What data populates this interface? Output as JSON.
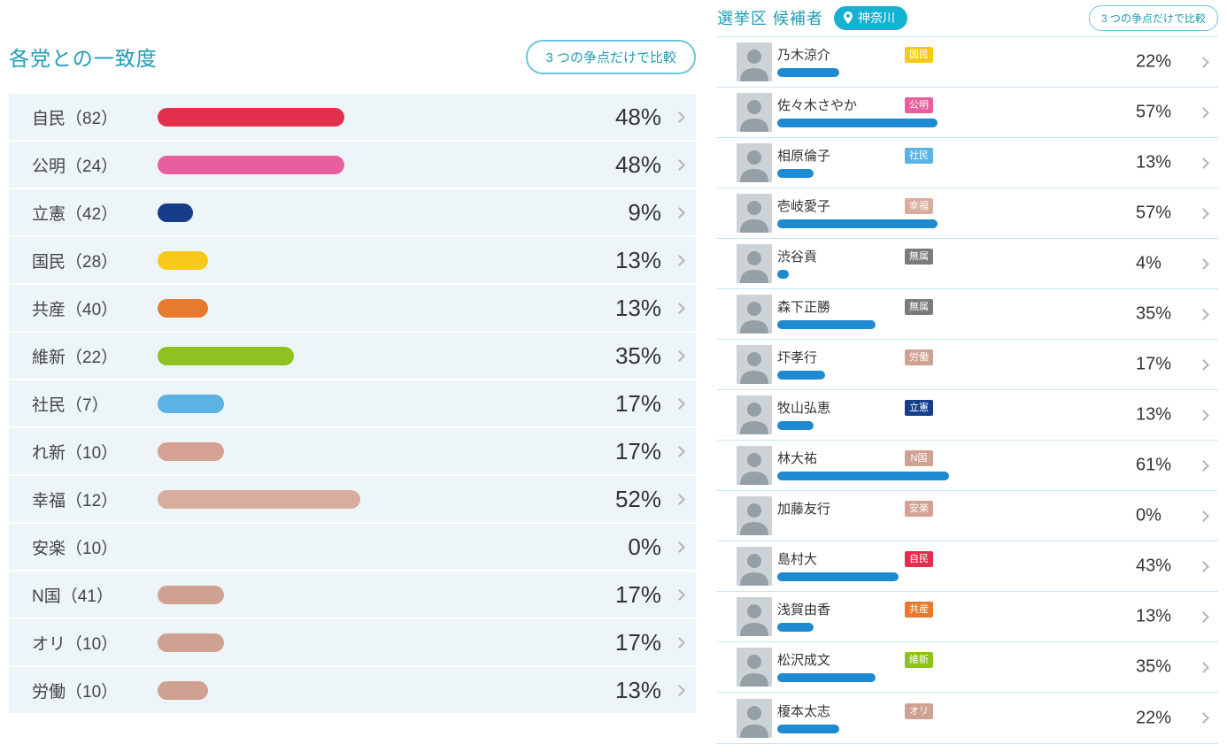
{
  "accent_color": "#1f9cb5",
  "icons": {
    "chevron": "chevron-right",
    "location_pin": "map-pin"
  },
  "left_panel": {
    "title": "各党との一致度",
    "compare_button": "3 つの争点だけで比較",
    "rows": [
      {
        "party": "自民（82）",
        "pct": 48,
        "pct_label": "48%",
        "color": "#e2304c"
      },
      {
        "party": "公明（24）",
        "pct": 48,
        "pct_label": "48%",
        "color": "#e75f9e"
      },
      {
        "party": "立憲（42）",
        "pct": 9,
        "pct_label": "9%",
        "color": "#153d8a"
      },
      {
        "party": "国民（28）",
        "pct": 13,
        "pct_label": "13%",
        "color": "#f7c918"
      },
      {
        "party": "共産（40）",
        "pct": 13,
        "pct_label": "13%",
        "color": "#e87a2e"
      },
      {
        "party": "維新（22）",
        "pct": 35,
        "pct_label": "35%",
        "color": "#8dc21f"
      },
      {
        "party": "社民（7）",
        "pct": 17,
        "pct_label": "17%",
        "color": "#5bb3e4"
      },
      {
        "party": "れ新（10）",
        "pct": 17,
        "pct_label": "17%",
        "color": "#d4a192"
      },
      {
        "party": "幸福（12）",
        "pct": 52,
        "pct_label": "52%",
        "color": "#d8ac9e"
      },
      {
        "party": "安楽（10）",
        "pct": 0,
        "pct_label": "0%",
        "color": "#d4a192"
      },
      {
        "party": "N国（41）",
        "pct": 17,
        "pct_label": "17%",
        "color": "#cfa193"
      },
      {
        "party": "オリ（10）",
        "pct": 17,
        "pct_label": "17%",
        "color": "#cfa193"
      },
      {
        "party": "労働（10）",
        "pct": 13,
        "pct_label": "13%",
        "color": "#cfa193"
      }
    ]
  },
  "right_panel": {
    "title": "選挙区 候補者",
    "location": "神奈川",
    "compare_button": "3 つの争点だけで比較",
    "bar_color": "#1e8ad2",
    "candidates": [
      {
        "name": "乃木涼介",
        "party": "国民",
        "party_color": "#f7c918",
        "pct": 22,
        "pct_label": "22%"
      },
      {
        "name": "佐々木さやか",
        "party": "公明",
        "party_color": "#e75f9e",
        "pct": 57,
        "pct_label": "57%"
      },
      {
        "name": "相原倫子",
        "party": "社民",
        "party_color": "#5bb3e4",
        "pct": 13,
        "pct_label": "13%"
      },
      {
        "name": "壱岐愛子",
        "party": "幸福",
        "party_color": "#d8ac9e",
        "pct": 57,
        "pct_label": "57%"
      },
      {
        "name": "渋谷貢",
        "party": "無属",
        "party_color": "#7b7b7b",
        "pct": 4,
        "pct_label": "4%"
      },
      {
        "name": "森下正勝",
        "party": "無属",
        "party_color": "#7b7b7b",
        "pct": 35,
        "pct_label": "35%"
      },
      {
        "name": "圷孝行",
        "party": "労働",
        "party_color": "#cfa193",
        "pct": 17,
        "pct_label": "17%"
      },
      {
        "name": "牧山弘恵",
        "party": "立憲",
        "party_color": "#153d8a",
        "pct": 13,
        "pct_label": "13%"
      },
      {
        "name": "林大祐",
        "party": "N国",
        "party_color": "#cfa193",
        "pct": 61,
        "pct_label": "61%"
      },
      {
        "name": "加藤友行",
        "party": "安楽",
        "party_color": "#d4a192",
        "pct": 0,
        "pct_label": "0%"
      },
      {
        "name": "島村大",
        "party": "自民",
        "party_color": "#e2304c",
        "pct": 43,
        "pct_label": "43%"
      },
      {
        "name": "浅賀由香",
        "party": "共産",
        "party_color": "#e87a2e",
        "pct": 13,
        "pct_label": "13%"
      },
      {
        "name": "松沢成文",
        "party": "維新",
        "party_color": "#8dc21f",
        "pct": 35,
        "pct_label": "35%"
      },
      {
        "name": "榎本太志",
        "party": "オリ",
        "party_color": "#cfa193",
        "pct": 22,
        "pct_label": "22%"
      }
    ]
  }
}
